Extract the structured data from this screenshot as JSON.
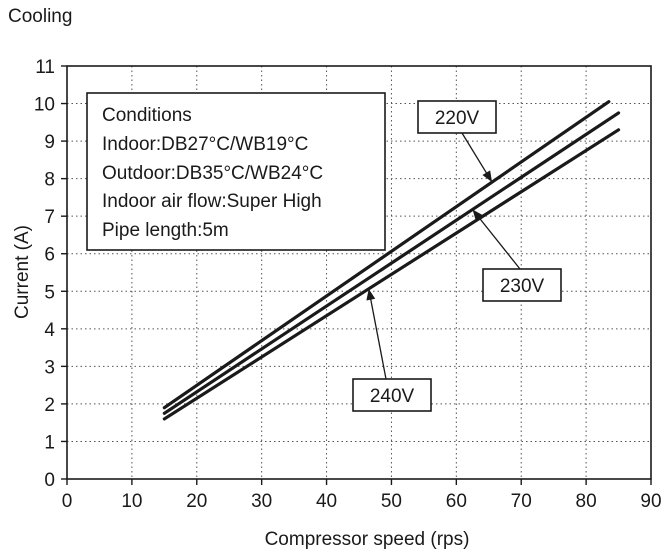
{
  "chart_data": {
    "type": "line",
    "title": "Cooling",
    "xlabel": "Compressor speed (rps)",
    "ylabel": "Current (A)",
    "xlim": [
      0,
      90
    ],
    "ylim": [
      0,
      11
    ],
    "x_ticks": [
      0,
      10,
      20,
      30,
      40,
      50,
      60,
      70,
      80,
      90
    ],
    "y_ticks": [
      0,
      1,
      2,
      3,
      4,
      5,
      6,
      7,
      8,
      9,
      10,
      11
    ],
    "grid": true,
    "grid_style": "dotted",
    "series": [
      {
        "name": "220V",
        "x": [
          15,
          83.5
        ],
        "y": [
          1.9,
          10.05
        ]
      },
      {
        "name": "230V",
        "x": [
          15,
          85
        ],
        "y": [
          1.75,
          9.75
        ]
      },
      {
        "name": "240V",
        "x": [
          15,
          85
        ],
        "y": [
          1.6,
          9.3
        ]
      }
    ],
    "conditions": {
      "heading": "Conditions",
      "lines": [
        "Indoor:DB27°C/WB19°C",
        "Outdoor:DB35°C/WB24°C",
        "Indoor air flow:Super High",
        "Pipe length:5m"
      ]
    }
  }
}
